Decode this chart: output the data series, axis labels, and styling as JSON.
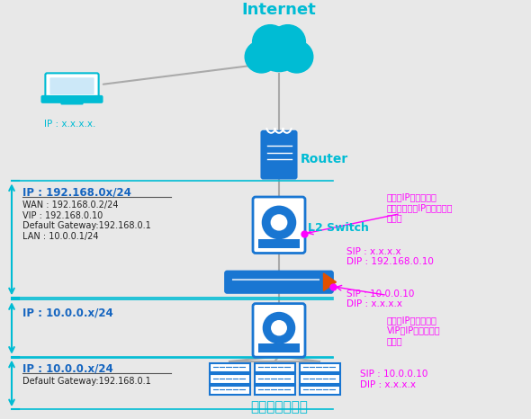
{
  "bg_color": "#e8e8e8",
  "title": "Internet",
  "cyan": "#00bcd4",
  "dark_blue": "#1565c0",
  "blue": "#1976d2",
  "magenta": "#ff00ff",
  "pink": "#ff40ff",
  "gray_line": "#aaaaaa",
  "white": "#ffffff",
  "text_color_dark": "#1565c0",
  "laptop_label": "IP : x.x.x.x.",
  "internet_label": "Internet",
  "router_label": "Router",
  "l2switch_label": "L2 Switch",
  "serverfarm_label": "サーバファーム",
  "zone1_label": "IP : 192.168.0x/24",
  "zone1_details": "WAN : 192.168.0.2/24\nVIP : 192.168.0.10\nDefault Gateway:192.168.0.1\nLAN : 10.0.0.1/24",
  "zone2_label": "IP : 10.0.0.x/24",
  "zone3_label": "IP : 10.0.0.x/24",
  "zone3_details": "Default Gateway:192.168.0.1",
  "anno1_text": "あて先IPアドレスを\n実サーバーのIPアドレスに\n書換え",
  "anno2_text": "SIP : x.x.x.x\nDIP : 192.168.0.10",
  "anno3_text": "SIP : 10.0.0.10\nDIP : x.x.x.x",
  "anno4_text": "送信元IPアドレスを\nVIPのIPアドレスに\n書換え",
  "anno5_text": "SIP : 10.0.0.10\nDIP : x.x.x.x"
}
